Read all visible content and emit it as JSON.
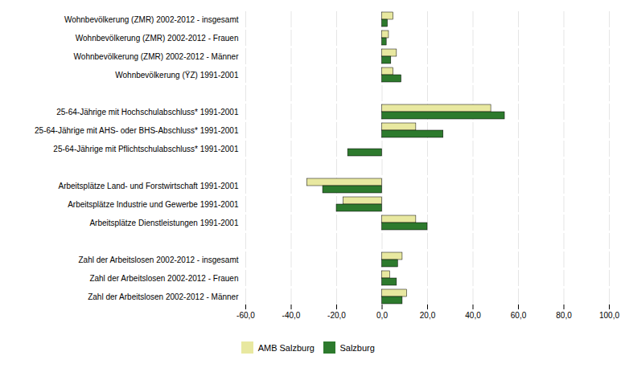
{
  "chart_data": {
    "type": "bar",
    "orientation": "horizontal",
    "categories": [
      "Wohnbevölkerung (ZMR) 2002-2012 - insgesamt",
      "Wohnbevölkerung (ZMR) 2002-2012 - Frauen",
      "Wohnbevölkerung (ZMR) 2002-2012 - Männer",
      "Wohnbevölkerung (ŸZ) 1991-2001",
      null,
      "25-64-Jährige mit Hochschulabschluss* 1991-2001",
      "25-64-Jährige mit AHS- oder BHS-Abschluss* 1991-2001",
      "25-64-Jährige mit Pflichtschulabschluss* 1991-2001",
      null,
      "Arbeitsplätze Land- und Forstwirtschaft 1991-2001",
      "Arbeitsplätze Industrie und Gewerbe 1991-2001",
      "Arbeitsplätze Dienstleistungen 1991-2001",
      null,
      "Zahl der Arbeitslosen 2002-2012 - insgesamt",
      "Zahl der Arbeitslosen 2002-2012 - Frauen",
      "Zahl der Arbeitslosen 2002-2012 - Männer"
    ],
    "series": [
      {
        "name": "AMB Salzburg",
        "color": "#e8e8a0",
        "values": [
          5.0,
          3.0,
          6.5,
          5.0,
          null,
          48.0,
          15.0,
          0.0,
          null,
          -33.0,
          -17.0,
          15.0,
          null,
          9.0,
          3.5,
          11.0
        ]
      },
      {
        "name": "Salzburg",
        "color": "#2d7a2d",
        "values": [
          2.5,
          2.0,
          4.0,
          8.5,
          null,
          54.0,
          27.0,
          -15.0,
          null,
          -26.0,
          -20.0,
          20.0,
          null,
          7.0,
          6.5,
          9.0
        ]
      }
    ],
    "xlim": [
      -60,
      100
    ],
    "xticks": [
      {
        "value": -60,
        "label": "-60,0"
      },
      {
        "value": -40,
        "label": "-40,0"
      },
      {
        "value": -20,
        "label": "-20,0"
      },
      {
        "value": 0,
        "label": "0,0"
      },
      {
        "value": 20,
        "label": "20,0"
      },
      {
        "value": 40,
        "label": "40,0"
      },
      {
        "value": 60,
        "label": "60,0"
      },
      {
        "value": 80,
        "label": "80,0"
      },
      {
        "value": 100,
        "label": "100,0"
      }
    ],
    "grid": true,
    "legend": "bottom"
  }
}
